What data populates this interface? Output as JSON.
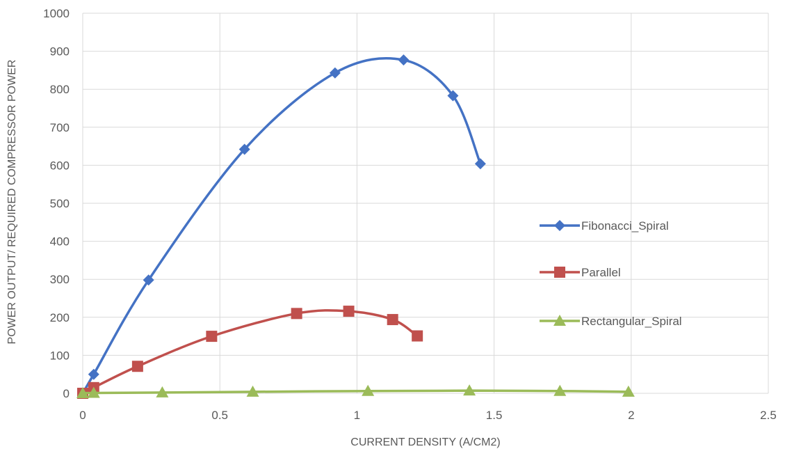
{
  "chart_data": {
    "type": "scatter",
    "title": "",
    "xlabel": "CURRENT DENSITY  (A/CM2)",
    "ylabel": "POWER OUTPUT/ REQUIRED COMPRESSOR   POWER",
    "xlim": [
      0,
      2.5
    ],
    "ylim": [
      0,
      1000
    ],
    "xticks": [
      "0",
      "0.5",
      "1",
      "1.5",
      "2",
      "2.5"
    ],
    "yticks": [
      "0",
      "100",
      "200",
      "300",
      "400",
      "500",
      "600",
      "700",
      "800",
      "900",
      "1000"
    ],
    "grid": true,
    "smooth": true,
    "legend_position": "right",
    "series": [
      {
        "name": "Fibonacci_Spiral",
        "color": "#4472C4",
        "marker": "diamond",
        "x": [
          0,
          0.04,
          0.24,
          0.59,
          0.92,
          1.17,
          1.35,
          1.45
        ],
        "y": [
          0,
          50,
          298,
          642,
          843,
          877,
          783,
          604
        ]
      },
      {
        "name": "Parallel",
        "color": "#C0504D",
        "marker": "square",
        "x": [
          0,
          0.04,
          0.2,
          0.47,
          0.78,
          0.97,
          1.13,
          1.22
        ],
        "y": [
          0,
          15,
          71,
          150,
          210,
          216,
          194,
          151
        ]
      },
      {
        "name": "Rectangular_Spiral",
        "color": "#9BBB59",
        "marker": "triangle",
        "x": [
          0,
          0.04,
          0.29,
          0.62,
          1.04,
          1.41,
          1.74,
          1.99
        ],
        "y": [
          0,
          1,
          2,
          4,
          6,
          7,
          6,
          4
        ]
      }
    ]
  }
}
